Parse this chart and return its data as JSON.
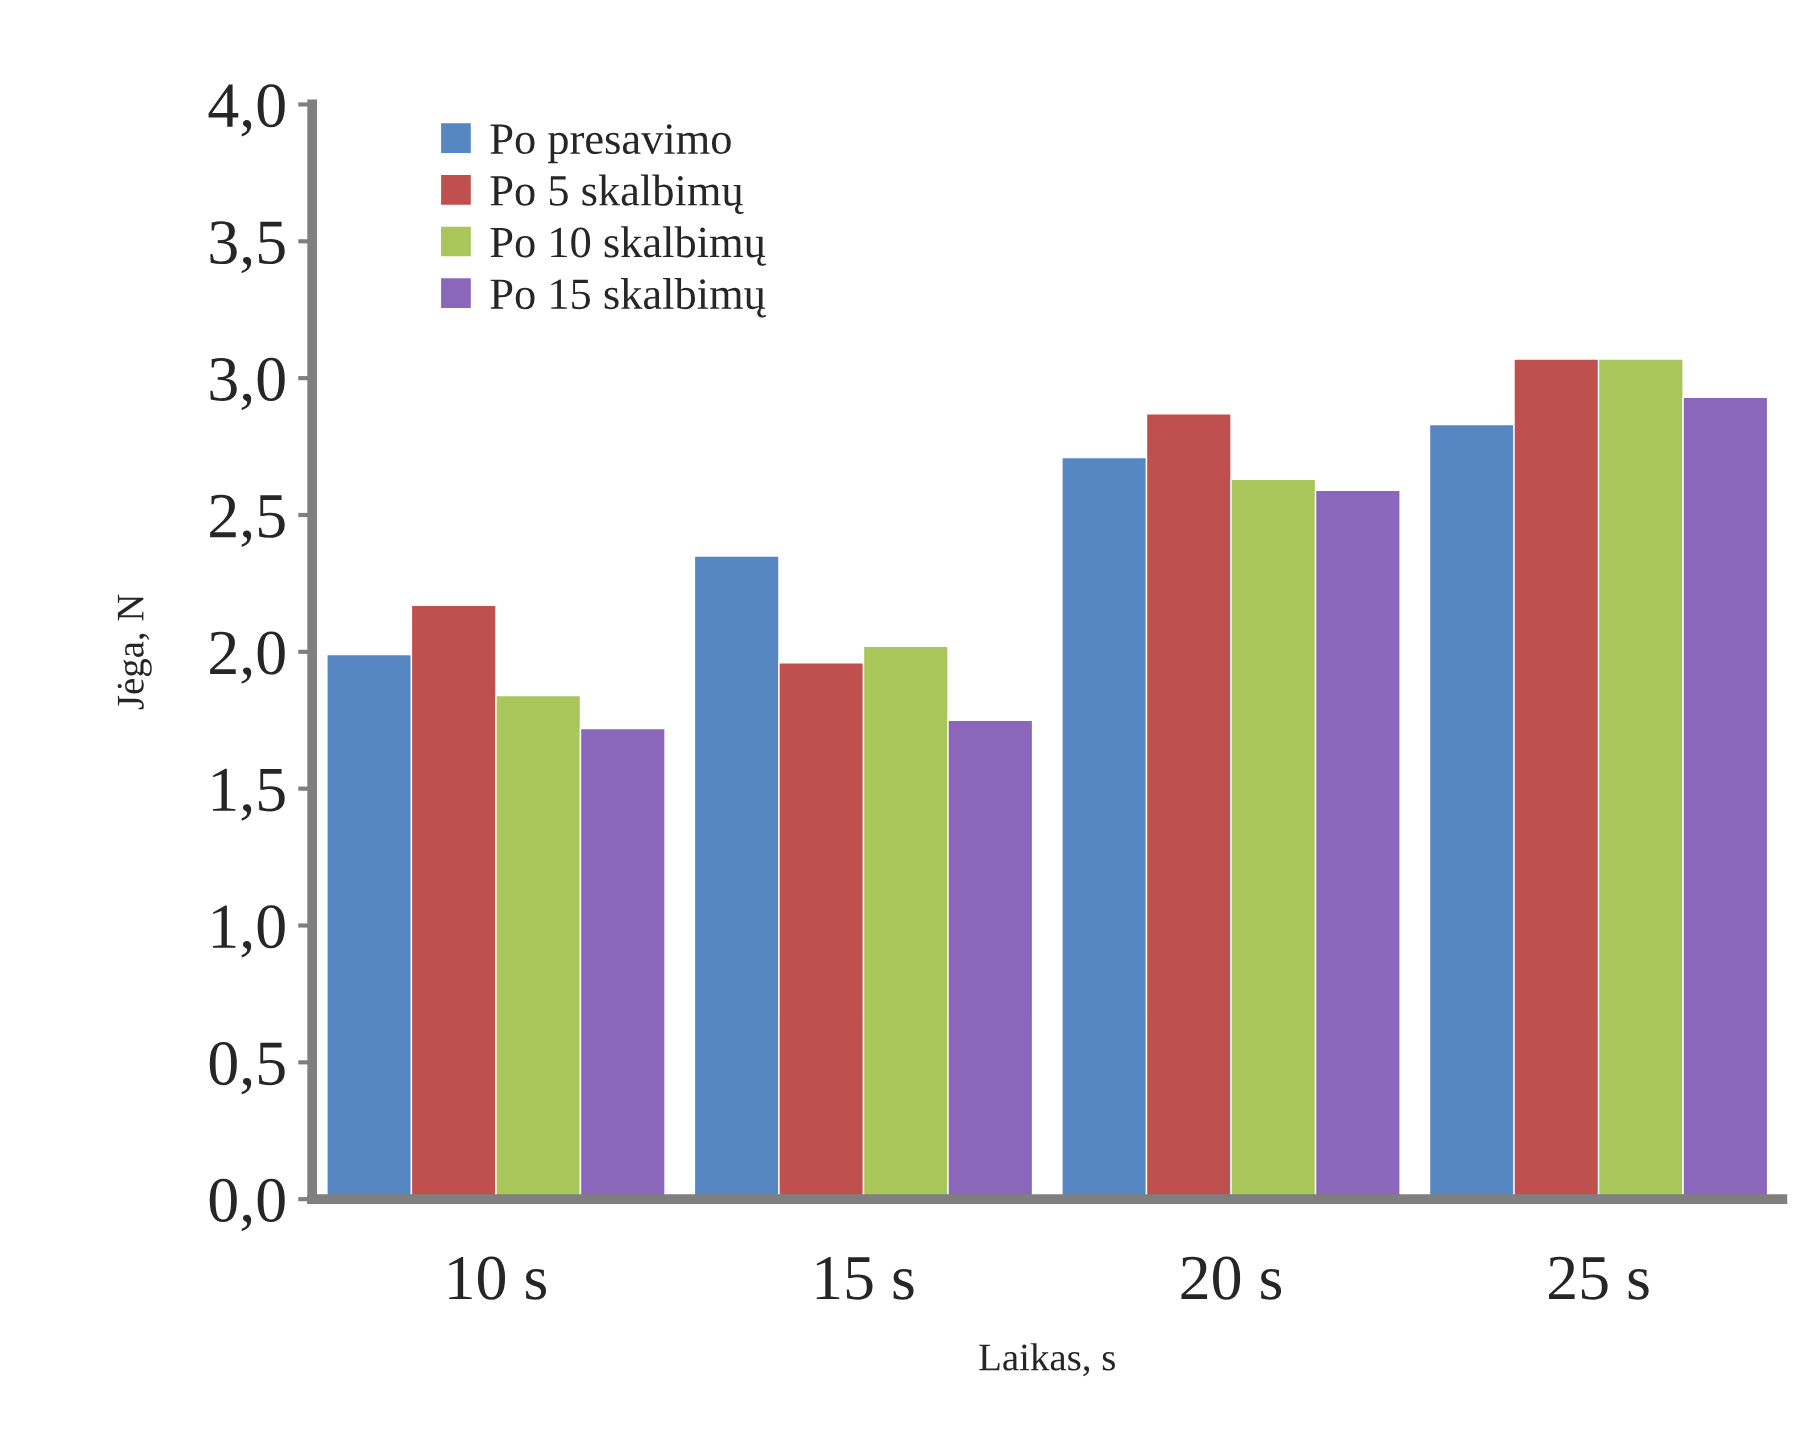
{
  "chart_data": {
    "type": "bar",
    "xlabel": "Laikas, s",
    "ylabel": "Jėga, N",
    "categories": [
      "10 s",
      "15 s",
      "20 s",
      "25 s"
    ],
    "series": [
      {
        "name": "Po presavimo",
        "color": "#5787c2",
        "values": [
          1.99,
          2.35,
          2.71,
          2.83
        ]
      },
      {
        "name": "Po 5 skalbimų",
        "color": "#c0504d",
        "values": [
          2.17,
          1.96,
          2.87,
          3.07
        ]
      },
      {
        "name": "Po 10 skalbimų",
        "color": "#a8c65a",
        "values": [
          1.84,
          2.02,
          2.63,
          3.07
        ]
      },
      {
        "name": "Po 15 skalbimų",
        "color": "#8b67bb",
        "values": [
          1.72,
          1.75,
          2.59,
          2.93
        ]
      }
    ],
    "ylim": [
      0,
      4
    ],
    "yticks": [
      {
        "value": 0,
        "label": "0,0"
      },
      {
        "value": 0.5,
        "label": "0,5"
      },
      {
        "value": 1,
        "label": "1,0"
      },
      {
        "value": 1.5,
        "label": "1,5"
      },
      {
        "value": 2,
        "label": "2,0"
      },
      {
        "value": 2.5,
        "label": "2,5"
      },
      {
        "value": 3,
        "label": "3,0"
      },
      {
        "value": 3.5,
        "label": "3,5"
      },
      {
        "value": 4,
        "label": "4,0"
      }
    ],
    "legend": "top left",
    "grid": false
  }
}
